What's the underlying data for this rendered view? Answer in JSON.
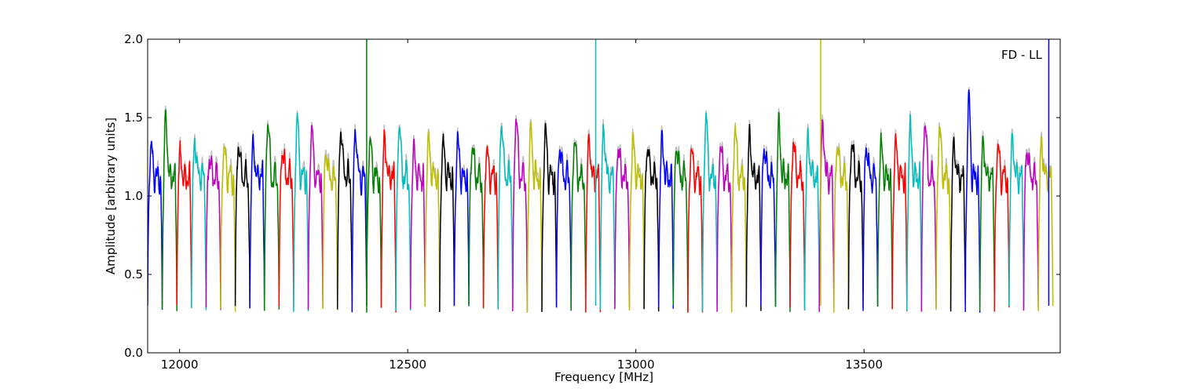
{
  "chart_data": {
    "type": "line",
    "title": "",
    "xlabel": "Frequency [MHz]",
    "ylabel": "Amplitude [arbitrary units]",
    "xlim": [
      11930,
      13930
    ],
    "ylim": [
      0.0,
      2.0
    ],
    "xticks": [
      12000,
      12500,
      13000,
      13500
    ],
    "yticks": [
      0.0,
      0.5,
      1.0,
      1.5,
      2.0
    ],
    "xtick_labels": [
      "12000",
      "12500",
      "13000",
      "13500"
    ],
    "ytick_labels": [
      "0.0",
      "0.5",
      "1.0",
      "1.5",
      "2.0"
    ],
    "annotation": "FD - LL",
    "grid": false,
    "legend": "none",
    "channel_width_mhz": 32,
    "channel_start_mhz": 11930,
    "channel_colors": [
      "#0000ff",
      "#008000",
      "#ff0000",
      "#00bfbf",
      "#bf00bf",
      "#bfbf00",
      "#000000"
    ],
    "reference_color": "#bfbfbf",
    "peak_amplitudes": [
      1.3,
      1.48,
      1.22,
      1.33,
      1.22,
      1.28,
      1.32,
      1.3,
      1.49,
      1.28,
      1.48,
      1.4,
      1.25,
      1.42,
      1.4,
      1.33,
      1.34,
      1.45,
      1.25,
      1.32,
      1.3,
      1.33,
      1.3,
      1.27,
      1.47,
      1.5,
      1.4,
      1.38,
      1.3,
      1.35,
      1.33,
      1.4,
      1.3,
      1.32,
      1.3,
      1.33,
      1.3,
      1.26,
      1.5,
      1.3,
      1.42,
      1.35,
      1.3,
      1.42,
      1.33,
      1.33,
      1.43,
      1.3,
      1.33,
      1.3,
      1.3,
      1.3,
      1.4,
      1.48,
      1.42,
      1.3,
      1.6,
      1.3,
      1.3,
      1.32,
      1.3,
      1.3
    ],
    "spikes": [
      {
        "x": 12410,
        "y": 2.0,
        "color": "#008000"
      },
      {
        "x": 12912,
        "y": 2.0,
        "color": "#00bfbf"
      },
      {
        "x": 13405,
        "y": 2.0,
        "color": "#bfbf00"
      },
      {
        "x": 13905,
        "y": 2.0,
        "color": "#0000ff"
      }
    ]
  }
}
